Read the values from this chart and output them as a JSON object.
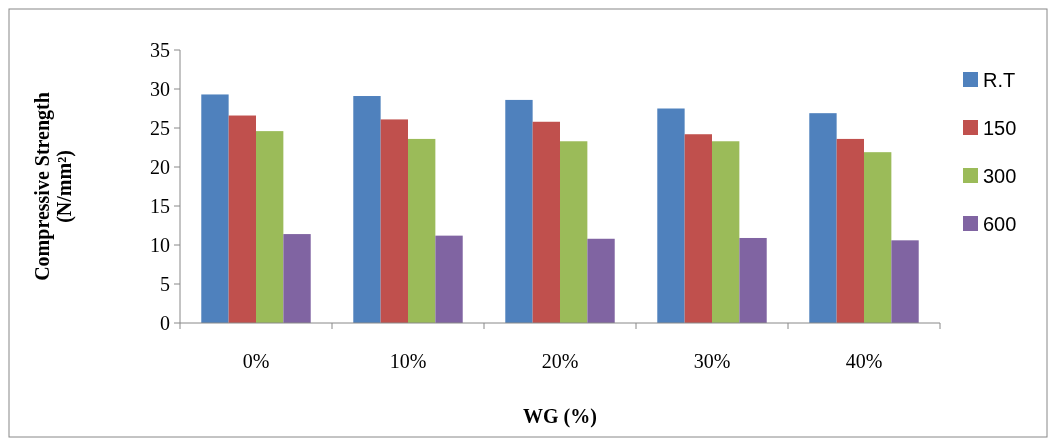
{
  "chart_data": {
    "type": "bar",
    "xlabel": "WG (%)",
    "ylabel": "Compressive Strength (N/mm²)",
    "categories": [
      "0%",
      "10%",
      "20%",
      "30%",
      "40%"
    ],
    "series": [
      {
        "name": "R.T",
        "color": "#4f81bd",
        "values": [
          29.3,
          29.1,
          28.6,
          27.5,
          26.9
        ]
      },
      {
        "name": "150",
        "color": "#c0504d",
        "values": [
          26.6,
          26.1,
          25.8,
          24.2,
          23.6
        ]
      },
      {
        "name": "300",
        "color": "#9bbb59",
        "values": [
          24.6,
          23.6,
          23.3,
          23.3,
          21.9
        ]
      },
      {
        "name": "600",
        "color": "#8064a2",
        "values": [
          11.4,
          11.2,
          10.8,
          10.9,
          10.6
        ]
      }
    ],
    "ylim": [
      0,
      35
    ],
    "yticks": [
      0,
      5,
      10,
      15,
      20,
      25,
      30,
      35
    ],
    "grid": false,
    "legend": "right"
  }
}
